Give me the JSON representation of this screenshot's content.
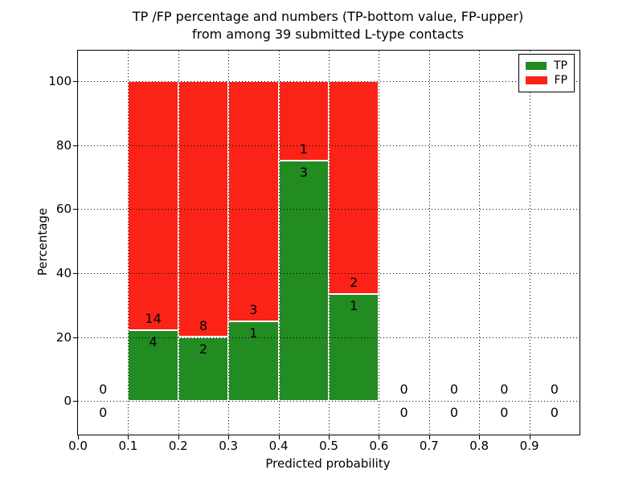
{
  "chart_data": {
    "type": "bar",
    "stacked": true,
    "title": "TP /FP percentage and numbers (TP-bottom value, FP-upper)\nfrom among 39 submitted L-type contacts",
    "xlabel": "Predicted probability",
    "ylabel": "Percentage",
    "xlim": [
      0.0,
      1.0
    ],
    "ylim": [
      -10.5,
      109.5
    ],
    "xticks": [
      "0.0",
      "0.1",
      "0.2",
      "0.3",
      "0.4",
      "0.5",
      "0.6",
      "0.7",
      "0.8",
      "0.9"
    ],
    "yticks": [
      "0",
      "20",
      "40",
      "60",
      "80",
      "100"
    ],
    "grid": true,
    "grid_style": "dotted",
    "bar_edge_color": "#ffffff",
    "legend": {
      "position": "upper right",
      "entries": [
        {
          "label": "TP",
          "color": "#228B22"
        },
        {
          "label": "FP",
          "color": "#FB2318"
        }
      ]
    },
    "bins": [
      {
        "range": [
          0.0,
          0.1
        ],
        "tp_count": 0,
        "fp_count": 0,
        "tp_pct": 0,
        "fp_pct": 0
      },
      {
        "range": [
          0.1,
          0.2
        ],
        "tp_count": 4,
        "fp_count": 14,
        "tp_pct": 22.2,
        "fp_pct": 77.8
      },
      {
        "range": [
          0.2,
          0.3
        ],
        "tp_count": 2,
        "fp_count": 8,
        "tp_pct": 20.0,
        "fp_pct": 80.0
      },
      {
        "range": [
          0.3,
          0.4
        ],
        "tp_count": 1,
        "fp_count": 3,
        "tp_pct": 25.0,
        "fp_pct": 75.0
      },
      {
        "range": [
          0.4,
          0.5
        ],
        "tp_count": 3,
        "fp_count": 1,
        "tp_pct": 75.0,
        "fp_pct": 25.0
      },
      {
        "range": [
          0.5,
          0.6
        ],
        "tp_count": 1,
        "fp_count": 2,
        "tp_pct": 33.3,
        "fp_pct": 66.7
      },
      {
        "range": [
          0.6,
          0.7
        ],
        "tp_count": 0,
        "fp_count": 0,
        "tp_pct": 0,
        "fp_pct": 0
      },
      {
        "range": [
          0.7,
          0.8
        ],
        "tp_count": 0,
        "fp_count": 0,
        "tp_pct": 0,
        "fp_pct": 0
      },
      {
        "range": [
          0.8,
          0.9
        ],
        "tp_count": 0,
        "fp_count": 0,
        "tp_pct": 0,
        "fp_pct": 0
      },
      {
        "range": [
          0.9,
          1.0
        ],
        "tp_count": 0,
        "fp_count": 0,
        "tp_pct": 0,
        "fp_pct": 0
      }
    ]
  }
}
